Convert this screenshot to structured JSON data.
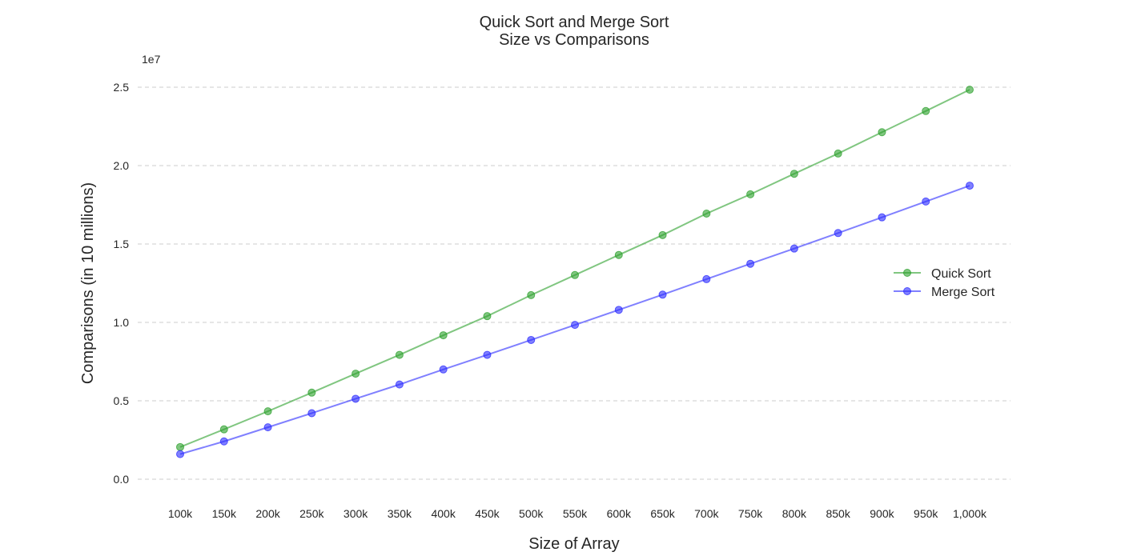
{
  "chart_data": {
    "type": "line",
    "title_line1": "Quick Sort and Merge Sort",
    "title_line2": "Size vs Comparisons",
    "xlabel": "Size of Array",
    "ylabel": "Comparisons (in 10 millions)",
    "y_offset_label": "1e7",
    "categories": [
      "100k",
      "150k",
      "200k",
      "250k",
      "300k",
      "350k",
      "400k",
      "450k",
      "500k",
      "550k",
      "600k",
      "650k",
      "700k",
      "750k",
      "800k",
      "850k",
      "900k",
      "950k",
      "1,000k"
    ],
    "ylim": [
      -0.09,
      2.6
    ],
    "yticks": [
      0.0,
      0.5,
      1.0,
      1.5,
      2.0,
      2.5
    ],
    "ytick_labels": [
      "0.0",
      "0.5",
      "1.0",
      "1.5",
      "2.0",
      "2.5"
    ],
    "grid": "y-dashed",
    "legend_position": "center-right",
    "series": [
      {
        "name": "Quick Sort",
        "color": "#2ca02c",
        "values": [
          0.205,
          0.318,
          0.433,
          0.552,
          0.673,
          0.793,
          0.918,
          1.04,
          1.174,
          1.302,
          1.43,
          1.557,
          1.694,
          1.817,
          1.948,
          2.077,
          2.213,
          2.348,
          2.484
        ]
      },
      {
        "name": "Merge Sort",
        "color": "#2b2bff",
        "values": [
          0.16,
          0.241,
          0.331,
          0.421,
          0.513,
          0.604,
          0.7,
          0.793,
          0.888,
          0.984,
          1.08,
          1.177,
          1.276,
          1.374,
          1.471,
          1.57,
          1.67,
          1.771,
          1.872
        ]
      }
    ]
  }
}
